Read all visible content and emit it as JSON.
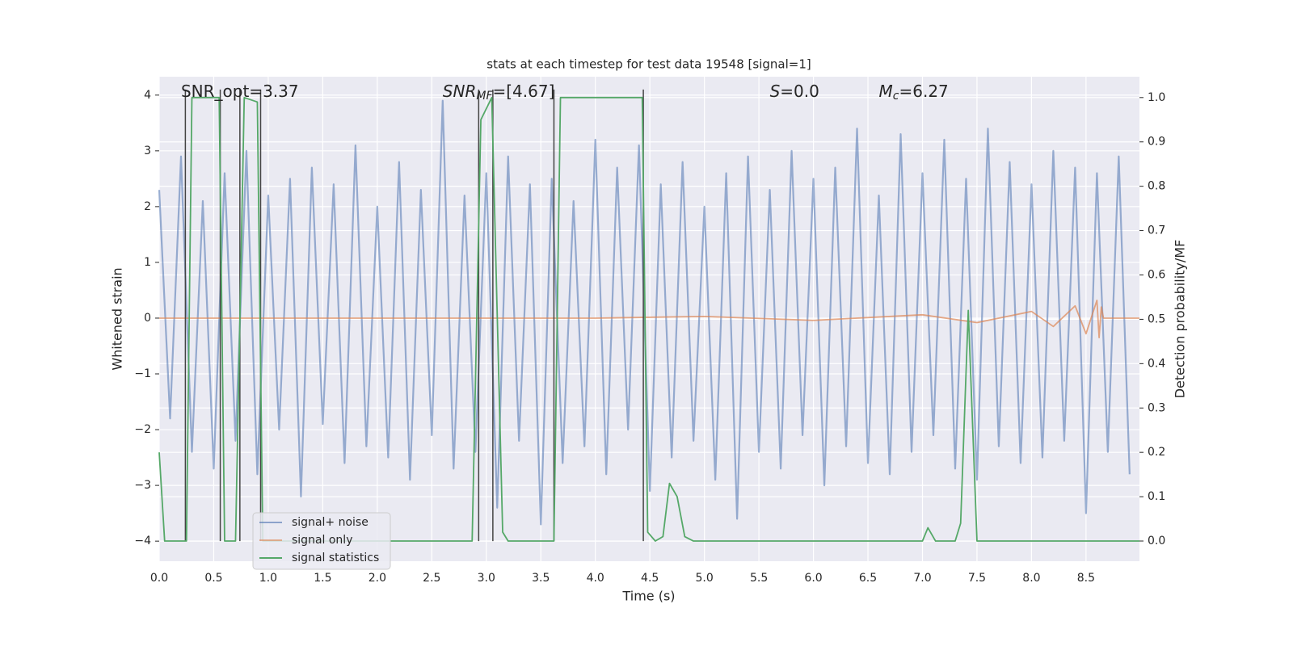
{
  "chart_data": {
    "type": "line",
    "title": "stats at each timestep for test data 19548 [signal=1]",
    "xlabel": "Time (s)",
    "ylabel": "Whitened strain",
    "y2label": "Detection probability/MF",
    "xlim": [
      0,
      8.99
    ],
    "ylim": [
      -4.36,
      4.33
    ],
    "y2lim": [
      -0.0455,
      1.047
    ],
    "xticks": [
      {
        "value": 0,
        "label": "0.0"
      },
      0.5,
      {
        "value": 1,
        "label": "1.0"
      },
      1.5,
      {
        "value": 2,
        "label": "2.0"
      },
      2.5,
      {
        "value": 3,
        "label": "3.0"
      },
      3.5,
      {
        "value": 4,
        "label": "4.0"
      },
      4.5,
      {
        "value": 5,
        "label": "5.0"
      },
      5.5,
      {
        "value": 6,
        "label": "6.0"
      },
      6.5,
      {
        "value": 7,
        "label": "7.0"
      },
      7.5,
      {
        "value": 8,
        "label": "8.0"
      },
      8.5
    ],
    "yticks": [
      {
        "value": -4,
        "label": "−4"
      },
      {
        "value": -3,
        "label": "−3"
      },
      {
        "value": -2,
        "label": "−2"
      },
      {
        "value": -1,
        "label": "−1"
      },
      0,
      1,
      2,
      3,
      4
    ],
    "y2ticks": [
      {
        "value": 0,
        "label": "0.0"
      },
      0.1,
      0.2,
      0.3,
      0.4,
      0.5,
      0.6,
      0.7,
      0.8,
      0.9,
      {
        "value": 1,
        "label": "1.0"
      }
    ],
    "grid": true,
    "legend": "lower left",
    "annotations": [
      {
        "main": "SNR_opt=3.37",
        "at": 0.2
      },
      {
        "main": "SNR",
        "sub": "MF",
        "rest": "=[4.67]",
        "at": 2.6,
        "italic": true
      },
      {
        "main": "S",
        "rest": "=0.0",
        "at": 5.6,
        "italic": true
      },
      {
        "main": "M",
        "sub": "c",
        "rest": "=6.27",
        "at": 6.6,
        "italic": true
      }
    ],
    "vlines": [
      0.24,
      0.56,
      0.74,
      0.93,
      2.93,
      3.06,
      3.62,
      4.44
    ],
    "vline_range": [
      -4,
      4.1
    ],
    "vline_color": "#444444",
    "series": [
      {
        "name": "signal+ noise",
        "color": "#4c72b0",
        "x": [
          0,
          0.1,
          0.2,
          0.3,
          0.4,
          0.5,
          0.6,
          0.7,
          0.8,
          0.9,
          1,
          1.1,
          1.2,
          1.3,
          1.4,
          1.5,
          1.6,
          1.7,
          1.8,
          1.9,
          2,
          2.1,
          2.2,
          2.3,
          2.4,
          2.5,
          2.6,
          2.7,
          2.8,
          2.9,
          3,
          3.1,
          3.2,
          3.3,
          3.4,
          3.5,
          3.6,
          3.7,
          3.8,
          3.9,
          4,
          4.1,
          4.2,
          4.3,
          4.4,
          4.5,
          4.6,
          4.7,
          4.8,
          4.9,
          5,
          5.1,
          5.2,
          5.3,
          5.4,
          5.5,
          5.6,
          5.7,
          5.8,
          5.9,
          6,
          6.1,
          6.2,
          6.3,
          6.4,
          6.5,
          6.6,
          6.7,
          6.8,
          6.9,
          7,
          7.1,
          7.2,
          7.3,
          7.4,
          7.5,
          7.6,
          7.7,
          7.8,
          7.9,
          8,
          8.1,
          8.2,
          8.3,
          8.4,
          8.5,
          8.6,
          8.7,
          8.8,
          8.9
        ],
        "values": [
          2.3,
          -1.8,
          2.9,
          -2.4,
          2.1,
          -2.7,
          2.6,
          -2.2,
          3.0,
          -2.8,
          2.2,
          -2.0,
          2.5,
          -3.2,
          2.7,
          -1.9,
          2.4,
          -2.6,
          3.1,
          -2.3,
          2.0,
          -2.5,
          2.8,
          -2.9,
          2.3,
          -2.1,
          3.9,
          -2.7,
          2.2,
          -2.4,
          2.6,
          -3.4,
          2.9,
          -2.2,
          2.4,
          -3.7,
          2.5,
          -2.6,
          2.1,
          -2.3,
          3.2,
          -2.8,
          2.7,
          -2.0,
          3.1,
          -3.1,
          2.4,
          -2.5,
          2.8,
          -2.2,
          2.0,
          -2.9,
          2.6,
          -3.6,
          2.9,
          -2.4,
          2.3,
          -2.7,
          3.0,
          -2.1,
          2.5,
          -3.0,
          2.7,
          -2.3,
          3.4,
          -2.6,
          2.2,
          -2.8,
          3.3,
          -2.4,
          2.6,
          -2.1,
          3.2,
          -2.7,
          2.5,
          -2.9,
          3.4,
          -2.3,
          2.8,
          -2.6,
          2.4,
          -2.5,
          3.0,
          -2.2,
          2.7,
          -3.5,
          2.6,
          -2.4,
          2.9,
          -2.8
        ]
      },
      {
        "name": "signal only",
        "color": "#dd8452",
        "x": [
          0,
          4.0,
          5,
          6,
          7,
          7.5,
          8,
          8.2,
          8.4,
          8.5,
          8.6,
          8.62,
          8.64,
          8.66,
          8.99
        ],
        "values": [
          0,
          0,
          0.03,
          -0.04,
          0.06,
          -0.08,
          0.12,
          -0.15,
          0.22,
          -0.28,
          0.32,
          -0.35,
          0.2,
          0,
          0
        ]
      },
      {
        "name": "signal statistics",
        "color": "#55a868",
        "axis": "y2",
        "x": [
          0,
          0.05,
          0.25,
          0.3,
          0.55,
          0.6,
          0.7,
          0.78,
          0.9,
          0.95,
          1.0,
          2.87,
          2.95,
          3.05,
          3.15,
          3.2,
          3.62,
          3.68,
          4.43,
          4.48,
          4.55,
          4.62,
          4.68,
          4.75,
          4.82,
          4.9,
          7.0,
          7.05,
          7.12,
          7.3,
          7.35,
          7.42,
          7.5,
          8.99
        ],
        "values": [
          0.2,
          0,
          0,
          1,
          1,
          0,
          0,
          1,
          0.99,
          0,
          0,
          0,
          0.95,
          1,
          0.02,
          0,
          0,
          1,
          1,
          0.02,
          0,
          0.01,
          0.13,
          0.1,
          0.01,
          0,
          0,
          0.03,
          0,
          0,
          0.04,
          0.52,
          0,
          0
        ]
      }
    ]
  }
}
